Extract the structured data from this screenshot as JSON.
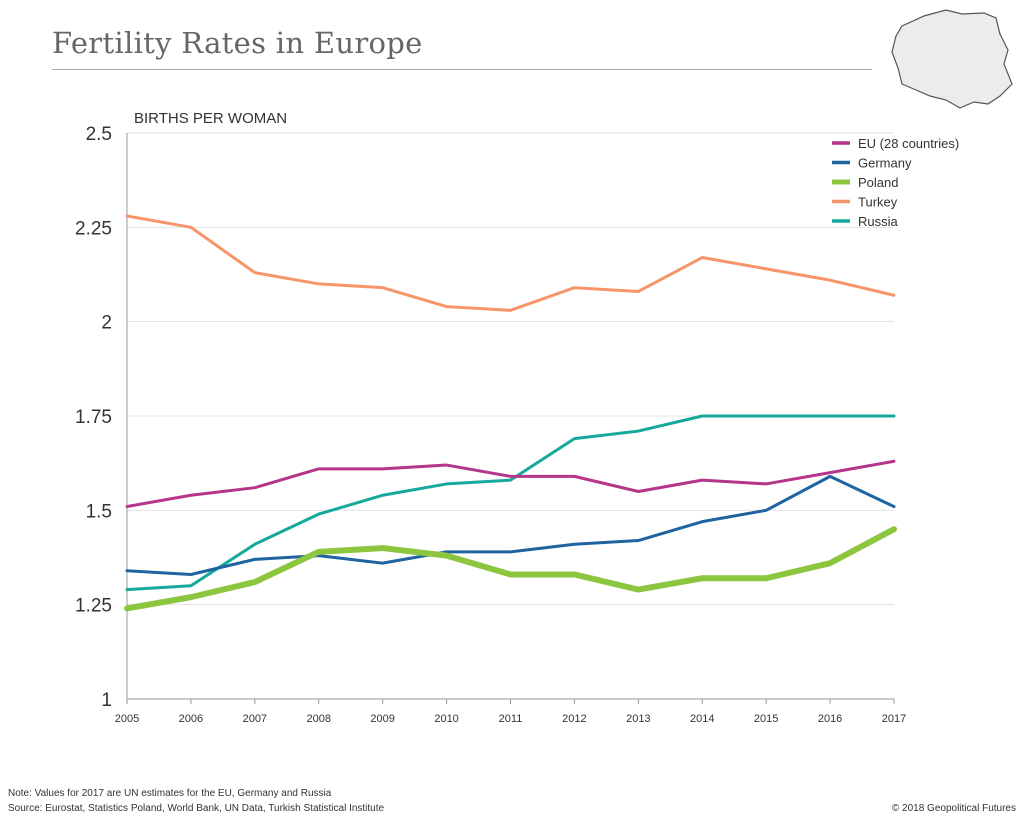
{
  "title": "Fertility Rates in Europe",
  "map_icon": "poland-map-icon",
  "chart_data": {
    "type": "line",
    "ylabel": "BIRTHS PER WOMAN",
    "x": [
      2005,
      2006,
      2007,
      2008,
      2009,
      2010,
      2011,
      2012,
      2013,
      2014,
      2015,
      2016,
      2017
    ],
    "ylim": [
      1,
      2.5
    ],
    "yticks": [
      "1",
      "1.25",
      "1.5",
      "1.75",
      "2",
      "2.25",
      "2.5"
    ],
    "grid": true,
    "legend_position": "top-right",
    "series": [
      {
        "name": "EU (28 countries)",
        "color": "#b5358a",
        "values": [
          1.51,
          1.54,
          1.56,
          1.61,
          1.61,
          1.62,
          1.59,
          1.59,
          1.55,
          1.58,
          1.57,
          1.6,
          1.63
        ]
      },
      {
        "name": "Germany",
        "color": "#1f63a0",
        "values": [
          1.34,
          1.33,
          1.37,
          1.38,
          1.36,
          1.39,
          1.39,
          1.41,
          1.42,
          1.47,
          1.5,
          1.59,
          1.51
        ]
      },
      {
        "name": "Poland",
        "color": "#8cc63f",
        "values": [
          1.24,
          1.27,
          1.31,
          1.39,
          1.4,
          1.38,
          1.33,
          1.33,
          1.29,
          1.32,
          1.32,
          1.36,
          1.45
        ]
      },
      {
        "name": "Turkey",
        "color": "#f7956a",
        "values": [
          2.28,
          2.25,
          2.13,
          2.1,
          2.09,
          2.04,
          2.03,
          2.09,
          2.08,
          2.17,
          2.14,
          2.11,
          2.07
        ]
      },
      {
        "name": "Russia",
        "color": "#16a99b",
        "values": [
          1.29,
          1.3,
          1.41,
          1.49,
          1.54,
          1.57,
          1.58,
          1.69,
          1.71,
          1.75,
          1.75,
          1.75,
          1.75
        ]
      }
    ]
  },
  "footer": {
    "note": "Note: Values for 2017 are UN estimates for the EU, Germany and Russia",
    "source": "Source: Eurostat, Statistics Poland, World Bank, UN Data, Turkish Statistical Institute",
    "copyright": "© 2018 Geopolitical Futures"
  }
}
